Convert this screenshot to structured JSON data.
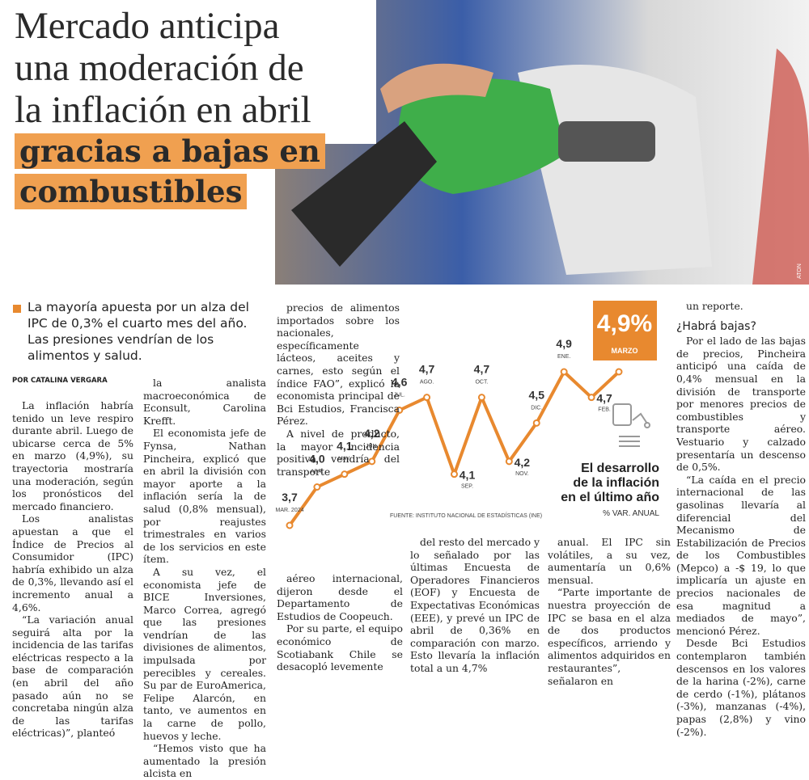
{
  "header": {
    "title_lines": [
      "Mercado anticipa",
      "una moderación de",
      "la inflación en abril"
    ],
    "highlight_lines": [
      "gracias a bajas en",
      "combustibles"
    ],
    "photo_credit": "ATON"
  },
  "lead": "La mayoría apuesta por un alza del IPC de 0,3% el cuarto mes del año. Las presiones vendrían de los alimentos y salud.",
  "byline": "POR CATALINA VERGARA",
  "columns": [
    [
      "La inflación habría tenido un leve respiro durante abril. Luego de ubicarse cerca de 5% en marzo (4,9%), su trayectoria mostraría una moderación, según los pronósticos del mercado financiero.",
      "Los analistas apuestan a que el Índice de Precios al Consumidor (IPC) habría exhibido un alza de 0,3%, llevando así el incremento anual a 4,6%.",
      "“La variación anual seguirá alta por la incidencia de las tarifas eléctricas respecto a la base de comparación (en abril del año pasado aún no se concretaba ningún alza de las tarifas eléctricas)”, planteó"
    ],
    [
      "la analista macroeconómica de Econsult, Carolina Krefft.",
      "El economista jefe de Fynsa, Nathan Pincheira, explicó que en abril la división con mayor aporte a la inflación sería la de salud (0,8% mensual), por reajustes trimestrales en varios de los servicios en este ítem.",
      "A su vez, el economista jefe de BICE Inversiones, Marco Correa, agregó que las presiones vendrían de las divisiones de alimentos, impulsada por perecibles y cereales. Su par de EuroAmerica, Felipe Alarcón, en tanto, ve aumentos en la carne de pollo, huevos y leche.",
      "“Hemos visto que ha aumentado la presión alcista en"
    ],
    [
      "precios de alimentos importados sobre los nacionales, específicamente lácteos, aceites y carnes, esto según el índice FAO”, explicó la economista principal de Bci Estudios, Francisca Pérez.",
      "A nivel de producto, la mayor incidencia positiva vendría del transporte"
    ],
    [
      "aéreo internacional, dijeron desde el Departamento de Estudios de Coopeuch.",
      "Por su parte, el equipo económico de Scotiabank Chile se desacopló levemente"
    ],
    [
      "del resto del mercado y lo señalado por las últimas Encuesta de Operadores Financieros (EOF) y Encuesta de Expectativas Económicas (EEE), y prevé un IPC de abril de 0,36% en comparación con marzo. Esto llevaría la inflación total a un 4,7%"
    ],
    [
      "anual. El IPC sin volátiles, a su vez, aumentaría un 0,6% mensual.",
      "“Parte importante de nuestra proyección de IPC se basa en el alza de dos productos específicos, arriendo y alimentos adquiridos en restaurantes”, señalaron en"
    ],
    [
      "un reporte."
    ]
  ],
  "subhead": "¿Habrá bajas?",
  "last_column": [
    "Por el lado de las bajas de precios, Pincheira anticipó una caída de 0,4% mensual en la división de transporte por menores precios de combustibles y transporte aéreo. Vestuario y calzado presentaría un descenso de 0,5%.",
    "“La caída en el precio internacional de las gasolinas llevaría al diferencial del Mecanismo de Estabilización de Precios de los Combustibles (Mepco) a -$ 19, lo que implicaría un ajuste en precios nacionales de esa magnitud a mediados de mayo”, mencionó Pérez.",
    "Desde Bci Estudios contemplaron también descensos en los valores de la harina (-2%), carne de cerdo (-1%), plátanos (-3%), manzanas (-4%), papas (2,8%) y vino (-2%)."
  ],
  "chart_data": {
    "type": "line",
    "title": "El desarrollo de la inflación en el último año",
    "subtitle": "% VAR. ANUAL",
    "source": "FUENTE: INSTITUTO NACIONAL DE ESTADÍSTICAS (INE)",
    "categories": [
      "MAR. 2024",
      "ABR.",
      "MAY.",
      "JUN.",
      "JUL.",
      "AGO.",
      "SEP.",
      "OCT.",
      "NOV.",
      "DIC.",
      "ENE.",
      "FEB.",
      "MARZO"
    ],
    "values": [
      3.7,
      4.0,
      4.1,
      4.2,
      4.6,
      4.7,
      4.1,
      4.7,
      4.2,
      4.5,
      4.9,
      4.7,
      4.9
    ],
    "value_labels": [
      "3,7",
      "4,0",
      "4,1",
      "4,2",
      "4,6",
      "4,7",
      "4,1",
      "4,7",
      "4,2",
      "4,5",
      "4,9",
      "4,7",
      "4,9%"
    ],
    "color": "#e8892f"
  }
}
